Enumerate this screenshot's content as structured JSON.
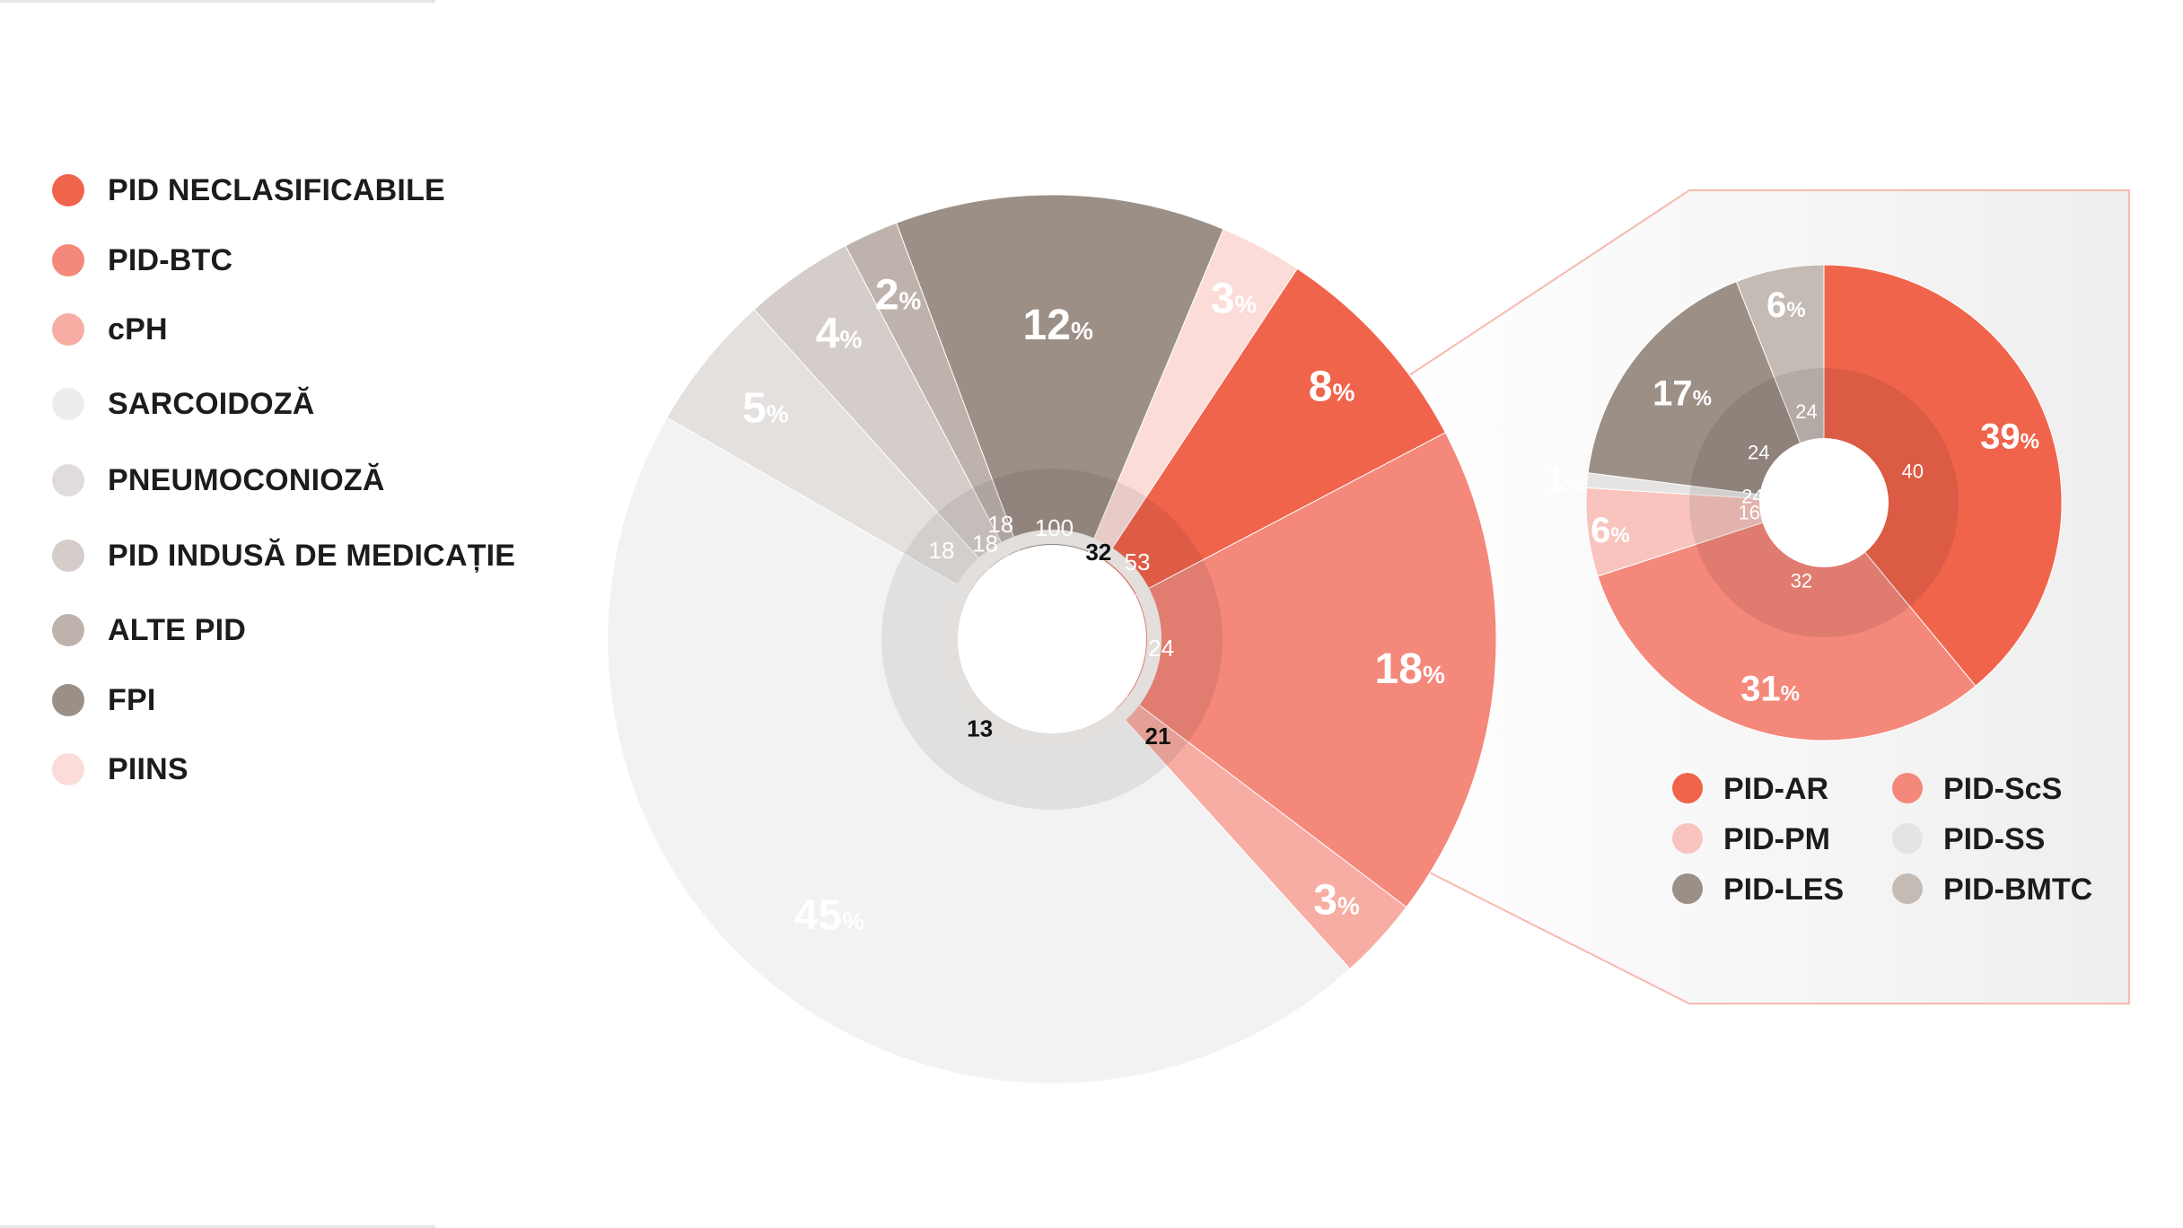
{
  "chart_data": [
    {
      "type": "pie",
      "legend_position": "left",
      "slices": [
        {
          "name": "PID NECLASIFICABILE",
          "value": 8,
          "label": "8",
          "color": "#f0644c",
          "count": "53",
          "label_color": "#ffffff"
        },
        {
          "name": "PID-BTC",
          "value": 18,
          "label": "18",
          "color": "#f4887a",
          "count": "24",
          "label_color": "#ffffff"
        },
        {
          "name": "cPH",
          "value": 3,
          "label": "3",
          "color": "#f7ada3",
          "count": "21",
          "label_color": "#ffffff"
        },
        {
          "name": "SARCOIDOZĂ",
          "value": 45,
          "label": "45",
          "color": "#f3f2f2",
          "count": "13",
          "label_color": "#9f948c"
        },
        {
          "name": "PNEUMOCONIOZĂ",
          "value": 5,
          "label": "5",
          "color": "#e3e0de",
          "count": "18",
          "label_color": "#9f948c"
        },
        {
          "name": "PID INDUSĂ DE MEDICAȚIE",
          "value": 4,
          "label": "4",
          "color": "#d4cdc9",
          "count": "18",
          "label_color": "#ffffff"
        },
        {
          "name": "ALTE PID",
          "value": 2,
          "label": "2",
          "color": "#beb3ac",
          "count": "18",
          "label_color": "#ffffff"
        },
        {
          "name": "FPI",
          "value": 12,
          "label": "12",
          "color": "#9c8f86",
          "count": "100",
          "label_color": "#ffffff"
        },
        {
          "name": "PIINS",
          "value": 3,
          "label": "3",
          "color": "#fbdcd8",
          "count": "32",
          "label_color": "#9f948c"
        }
      ]
    },
    {
      "type": "pie",
      "legend_position": "bottom",
      "slices": [
        {
          "name": "PID-AR",
          "value": 39,
          "label": "39",
          "color": "#f0644c",
          "count": "40",
          "label_color": "#ffffff"
        },
        {
          "name": "PID-ScS",
          "value": 31,
          "label": "31",
          "color": "#f4887a",
          "count": "32",
          "label_color": "#ffffff"
        },
        {
          "name": "PID-PM",
          "value": 6,
          "label": "6",
          "color": "#f8c4bd",
          "count": "16",
          "label_color": "#ffffff"
        },
        {
          "name": "PID-SS",
          "value": 1,
          "label": "1",
          "color": "#e6e4e3",
          "count": "24",
          "label_color": "#9f948c"
        },
        {
          "name": "PID-LES",
          "value": 17,
          "label": "17",
          "color": "#9c8f86",
          "count": "24",
          "label_color": "#ffffff"
        },
        {
          "name": "PID-BMTC",
          "value": 6,
          "label": "6",
          "color": "#c4bbb5",
          "count": "24",
          "label_color": "#ffffff"
        }
      ]
    }
  ],
  "percent_symbol": "%",
  "legend": {
    "items": [
      {
        "label": "PID NECLASIFICABILE",
        "color": "#f0644c"
      },
      {
        "label": "PID-BTC",
        "color": "#f4887a"
      },
      {
        "label": "cPH",
        "color": "#f7ada3"
      },
      {
        "label": "SARCOIDOZĂ",
        "color": "#ededed"
      },
      {
        "label": "PNEUMOCONIOZĂ",
        "color": "#e0dcdb"
      },
      {
        "label": "PID INDUSĂ DE MEDICAȚIE",
        "color": "#d4cdc9"
      },
      {
        "label": "ALTE PID",
        "color": "#beb3ac"
      },
      {
        "label": "FPI",
        "color": "#9c8f86"
      },
      {
        "label": "PIINS",
        "color": "#fbdcd8"
      }
    ]
  },
  "sub_legend": {
    "items": [
      {
        "label": "PID-AR",
        "color": "#f0644c"
      },
      {
        "label": "PID-ScS",
        "color": "#f4887a"
      },
      {
        "label": "PID-PM",
        "color": "#f8c4bd"
      },
      {
        "label": "PID-SS",
        "color": "#e6e4e3"
      },
      {
        "label": "PID-LES",
        "color": "#9c8f86"
      },
      {
        "label": "PID-BMTC",
        "color": "#c4bbb5"
      }
    ]
  }
}
